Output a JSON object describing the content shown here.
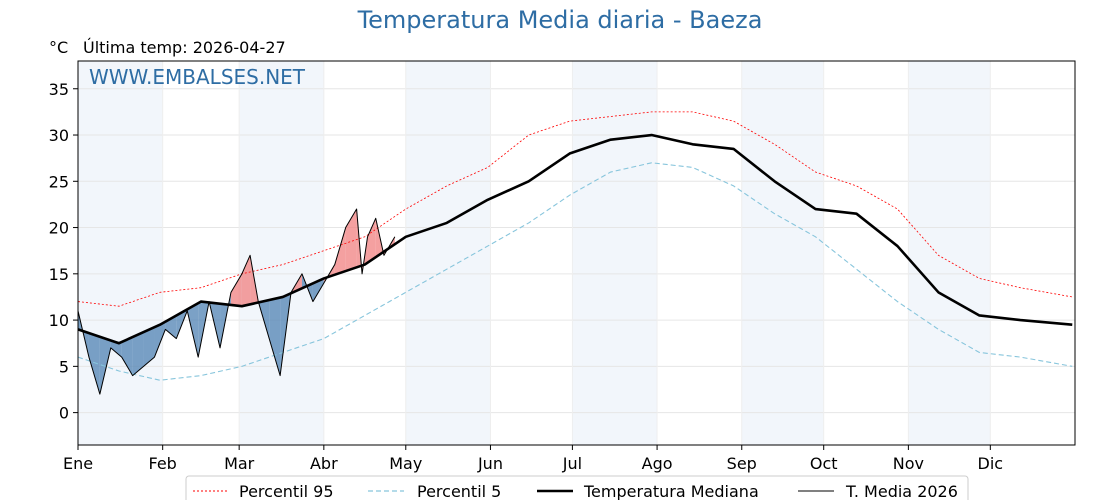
{
  "header": {
    "title": "Temperatura Media diaria - Baeza",
    "unit": "°C",
    "last_temp_label": "Última temp: 2026-04-27",
    "watermark": "WWW.EMBALSES.NET"
  },
  "colors": {
    "p95": "#ff0000",
    "p5": "#87c5dc",
    "median": "#000000",
    "current": "#000000",
    "above": "#f08080",
    "below": "#4f81b3",
    "band": "#f2f6fb",
    "title": "#2e6da4"
  },
  "chart_data": {
    "type": "line",
    "title": "Temperatura Media diaria - Baeza",
    "ylabel": "°C",
    "xlabel": "",
    "ylim": [
      -3.5,
      38
    ],
    "yticks": [
      0,
      5,
      10,
      15,
      20,
      25,
      30,
      35
    ],
    "months": [
      "Ene",
      "Feb",
      "Mar",
      "Abr",
      "May",
      "Jun",
      "Jul",
      "Ago",
      "Sep",
      "Oct",
      "Nov",
      "Dic"
    ],
    "month_start_day": [
      0,
      31,
      59,
      90,
      120,
      151,
      181,
      212,
      243,
      273,
      304,
      334,
      365
    ],
    "grid": true,
    "legend_position": "bottom",
    "series": [
      {
        "name": "Percentil 95",
        "style": "dotted",
        "color": "#ff0000",
        "days": [
          0,
          15,
          30,
          45,
          60,
          75,
          90,
          105,
          120,
          135,
          150,
          165,
          180,
          195,
          210,
          225,
          240,
          255,
          270,
          285,
          300,
          315,
          330,
          345,
          364
        ],
        "values": [
          12,
          11.5,
          13,
          13.5,
          15,
          16,
          17.5,
          19,
          22,
          24.5,
          26.5,
          30,
          31.5,
          32,
          32.5,
          32.5,
          31.5,
          29,
          26,
          24.5,
          22,
          17,
          14.5,
          13.5,
          12.5
        ]
      },
      {
        "name": "Percentil 5",
        "style": "dashed",
        "color": "#87c5dc",
        "days": [
          0,
          15,
          30,
          45,
          60,
          75,
          90,
          105,
          120,
          135,
          150,
          165,
          180,
          195,
          210,
          225,
          240,
          255,
          270,
          285,
          300,
          315,
          330,
          345,
          364
        ],
        "values": [
          6,
          4.5,
          3.5,
          4,
          5,
          6.5,
          8,
          10.5,
          13,
          15.5,
          18,
          20.5,
          23.5,
          26,
          27,
          26.5,
          24.5,
          21.5,
          19,
          15.5,
          12,
          9,
          6.5,
          6,
          5
        ]
      },
      {
        "name": "Temperatura Mediana",
        "style": "solid-thick",
        "color": "#000000",
        "days": [
          0,
          15,
          30,
          45,
          60,
          75,
          90,
          105,
          120,
          135,
          150,
          165,
          180,
          195,
          210,
          225,
          240,
          255,
          270,
          285,
          300,
          315,
          330,
          345,
          364
        ],
        "values": [
          9,
          7.5,
          9.5,
          12,
          11.5,
          12.5,
          14.5,
          16,
          19,
          20.5,
          23,
          25,
          28,
          29.5,
          30,
          29,
          28.5,
          25,
          22,
          21.5,
          18,
          13,
          10.5,
          10,
          9.5
        ]
      },
      {
        "name": "T. Media 2026",
        "style": "solid-thin",
        "color": "#000000",
        "days": [
          0,
          4,
          8,
          12,
          16,
          20,
          24,
          28,
          32,
          36,
          40,
          44,
          48,
          52,
          56,
          60,
          63,
          66,
          70,
          74,
          78,
          82,
          86,
          90,
          94,
          98,
          102,
          104,
          106,
          109,
          112,
          116
        ],
        "values": [
          11,
          6,
          2,
          7,
          6,
          4,
          5,
          6,
          9,
          8,
          11,
          6,
          12,
          7,
          13,
          15,
          17,
          12,
          8,
          4,
          13,
          15,
          12,
          14,
          16,
          20,
          22,
          15,
          19,
          21,
          17,
          19
        ]
      }
    ]
  },
  "legend": {
    "p95": "Percentil 95",
    "p5": "Percentil 5",
    "median": "Temperatura Mediana",
    "current": "T. Media 2026"
  }
}
